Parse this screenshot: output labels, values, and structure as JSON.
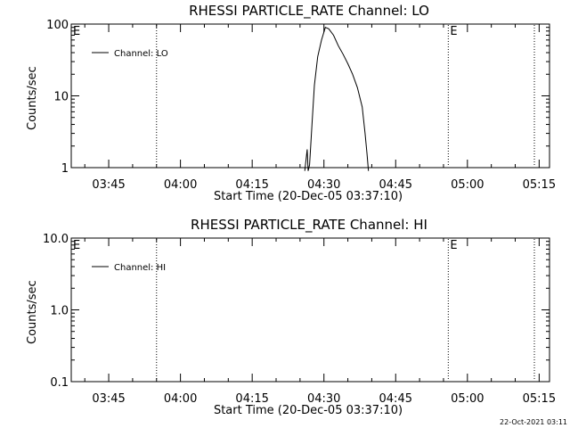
{
  "footer": {
    "timestamp": "22-Oct-2021 03:11"
  },
  "chart_data": [
    {
      "type": "line",
      "title": "RHESSI PARTICLE_RATE Channel: LO",
      "xlabel": "Start Time (20-Dec-05 03:37:10)",
      "ylabel": "Counts/sec",
      "y_scale": "log",
      "ylim": [
        1,
        100
      ],
      "y_ticks": [
        1,
        10,
        100
      ],
      "y_tick_labels": [
        "1",
        "10",
        "100"
      ],
      "x_range_minutes_after_start": [
        0,
        100
      ],
      "x_tick_labels": [
        "03:45",
        "04:00",
        "04:15",
        "04:30",
        "04:45",
        "05:00",
        "05:15"
      ],
      "x_tick_times": [
        "03:45",
        "04:00",
        "04:15",
        "04:30",
        "04:45",
        "05:00",
        "05:15"
      ],
      "vertical_markers": [
        "03:55",
        "04:56",
        "05:14"
      ],
      "marker_labels": [
        "E",
        "E"
      ],
      "legend": "Channel: LO",
      "legend_position": "top-left",
      "series": [
        {
          "name": "Channel: LO",
          "points": [
            [
              "04:26",
              0.9
            ],
            [
              "04:26.5",
              1.8
            ],
            [
              "04:26.7",
              0.9
            ],
            [
              "04:27",
              1.1
            ],
            [
              "04:27.5",
              4
            ],
            [
              "04:28",
              14
            ],
            [
              "04:28.7",
              35
            ],
            [
              "04:29.5",
              60
            ],
            [
              "04:30.3",
              90
            ],
            [
              "04:31",
              86
            ],
            [
              "04:32",
              70
            ],
            [
              "04:33",
              50
            ],
            [
              "04:34",
              38
            ],
            [
              "04:35",
              28
            ],
            [
              "04:36",
              20
            ],
            [
              "04:37",
              13
            ],
            [
              "04:38",
              7
            ],
            [
              "04:38.6",
              3
            ],
            [
              "04:39",
              1.6
            ],
            [
              "04:39.3",
              0.9
            ]
          ]
        }
      ]
    },
    {
      "type": "line",
      "title": "RHESSI PARTICLE_RATE Channel: HI",
      "xlabel": "Start Time (20-Dec-05 03:37:10)",
      "ylabel": "Counts/sec",
      "y_scale": "log",
      "ylim": [
        0.1,
        10
      ],
      "y_ticks": [
        0.1,
        1,
        10
      ],
      "y_tick_labels": [
        "0.1",
        "1.0",
        "10.0"
      ],
      "x_range_minutes_after_start": [
        0,
        100
      ],
      "x_tick_labels": [
        "03:45",
        "04:00",
        "04:15",
        "04:30",
        "04:45",
        "05:00",
        "05:15"
      ],
      "x_tick_times": [
        "03:45",
        "04:00",
        "04:15",
        "04:30",
        "04:45",
        "05:00",
        "05:15"
      ],
      "vertical_markers": [
        "03:55",
        "04:56",
        "05:14"
      ],
      "marker_labels": [
        "E",
        "E"
      ],
      "legend": "Channel: HI",
      "legend_position": "top-left",
      "series": [
        {
          "name": "Channel: HI",
          "points": []
        }
      ]
    }
  ]
}
